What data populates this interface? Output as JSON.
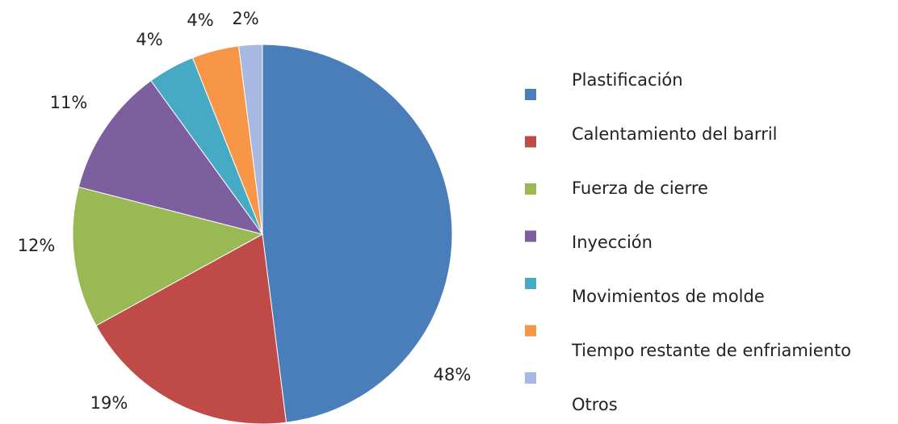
{
  "chart_data": {
    "type": "pie",
    "categories": [
      "Plastificación",
      "Calentamiento del barril",
      "Fuerza de cierre",
      "Inyección",
      "Movimientos de molde",
      "Tiempo restante de enfriamiento",
      "Otros"
    ],
    "values": [
      48,
      19,
      12,
      11,
      4,
      4,
      2
    ],
    "value_labels": [
      "48%",
      "19%",
      "12%",
      "11%",
      "4%",
      "4%",
      "2%"
    ],
    "colors": [
      "#4a7ebb",
      "#be4b48",
      "#98b954",
      "#7d5fa0",
      "#46aac5",
      "#f79646",
      "#a7b9e3"
    ],
    "legend": "right"
  }
}
